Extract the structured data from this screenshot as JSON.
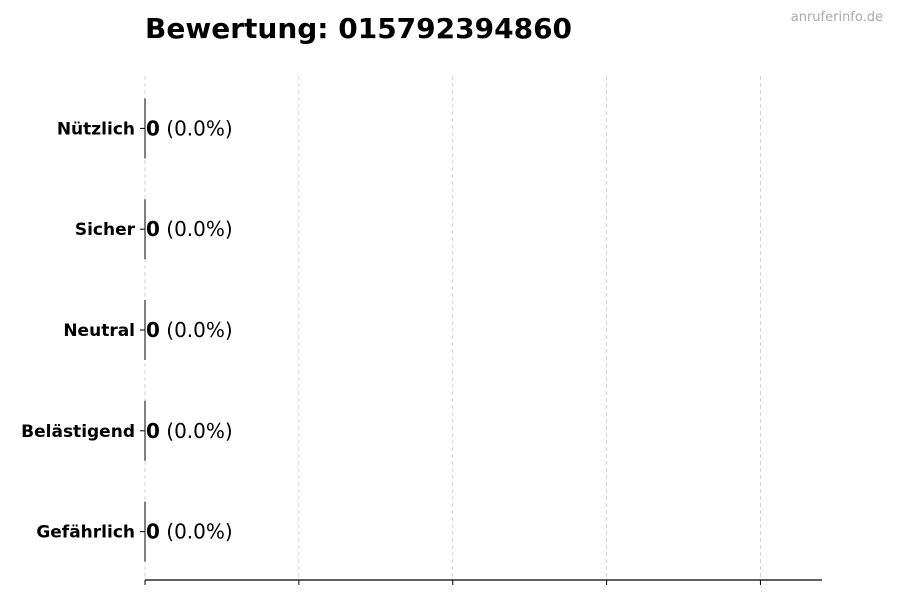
{
  "chart_data": {
    "type": "bar",
    "orientation": "horizontal",
    "title": "Bewertung: 015792394860",
    "categories": [
      "Nützlich",
      "Sicher",
      "Neutral",
      "Belästigend",
      "Gefährlich"
    ],
    "values": [
      0,
      0,
      0,
      0,
      0
    ],
    "labels": [
      {
        "count": "0",
        "percent": "(0.0%)"
      },
      {
        "count": "0",
        "percent": "(0.0%)"
      },
      {
        "count": "0",
        "percent": "(0.0%)"
      },
      {
        "count": "0",
        "percent": "(0.0%)"
      },
      {
        "count": "0",
        "percent": "(0.0%)"
      }
    ],
    "xlabel": "",
    "ylabel": "",
    "xlim": [
      0,
      4.4
    ],
    "xticks": [
      0,
      1,
      2,
      3,
      4
    ],
    "xtick_labels_shown": false,
    "grid": "vertical dashed",
    "grid_color": "#cccccc",
    "bar_color": "#000000"
  },
  "watermark": "anruferinfo.de"
}
